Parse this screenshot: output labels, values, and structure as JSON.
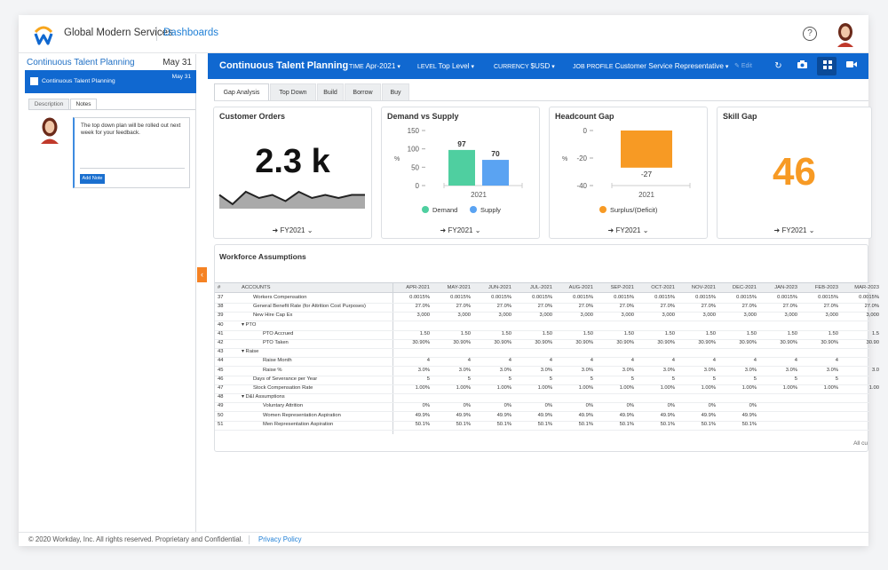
{
  "topbar": {
    "company": "Global Modern Services",
    "breadcrumb": "Dashboards",
    "help": "?"
  },
  "left_panel": {
    "title": "Continuous Talent Planning",
    "date": "May 31",
    "selected_item": {
      "label": "Continuous Talent Planning",
      "date": "May 31"
    },
    "tabs": [
      "Description",
      "Notes"
    ],
    "note": {
      "text": "The top down plan will be rolled out next week for your feedback.",
      "button": "Add Note"
    }
  },
  "header": {
    "title": "Continuous Talent Planning",
    "filters": [
      {
        "key": "TIME",
        "value": "Apr-2021"
      },
      {
        "key": "LEVEL",
        "value": "Top Level"
      },
      {
        "key": "CURRENCY",
        "value": "$USD"
      },
      {
        "key": "JOB PROFILE",
        "value": "Customer Service Representative"
      }
    ],
    "edit": "Edit"
  },
  "tabs": [
    "Gap Analysis",
    "Top Down",
    "Build",
    "Borrow",
    "Buy"
  ],
  "cards": {
    "customer_orders": {
      "title": "Customer Orders",
      "value": "2.3 k",
      "fy": "FY2021"
    },
    "demand_supply": {
      "title": "Demand vs Supply",
      "fy": "FY2021",
      "legend": [
        "Demand",
        "Supply"
      ]
    },
    "headcount_gap": {
      "title": "Headcount Gap",
      "fy": "FY2021",
      "legend": [
        "Surplus/(Deficit)"
      ]
    },
    "skill_gap": {
      "title": "Skill Gap",
      "value": "46",
      "fy": "FY2021"
    }
  },
  "chart_data": [
    {
      "type": "line",
      "title": "Customer Orders",
      "values": [
        5,
        2,
        6,
        4,
        5,
        3,
        6,
        4,
        5,
        4,
        5,
        5
      ],
      "color": "#222222"
    },
    {
      "type": "bar",
      "title": "Demand vs Supply",
      "categories": [
        "2021"
      ],
      "series": [
        {
          "name": "Demand",
          "values": [
            97
          ],
          "color": "#4fcfa0"
        },
        {
          "name": "Supply",
          "values": [
            70
          ],
          "color": "#5aa3f2"
        }
      ],
      "ylim": [
        0,
        150
      ],
      "yticks": [
        0,
        50,
        100,
        150
      ],
      "ylabel": "%"
    },
    {
      "type": "bar",
      "title": "Headcount Gap",
      "categories": [
        "2021"
      ],
      "series": [
        {
          "name": "Surplus/(Deficit)",
          "values": [
            -27
          ],
          "color": "#f79a24"
        }
      ],
      "ylim": [
        -40,
        0
      ],
      "yticks": [
        -40,
        -20,
        0
      ],
      "ylabel": "%"
    }
  ],
  "workforce": {
    "title": "Workforce Assumptions",
    "columns": [
      "#",
      "ACCOUNTS",
      "APR-2021",
      "MAY-2021",
      "JUN-2021",
      "JUL-2021",
      "AUG-2021",
      "SEP-2021",
      "OCT-2021",
      "NOV-2021",
      "DEC-2021",
      "JAN-2023",
      "FEB-2023",
      "MAR-2023"
    ],
    "rows": [
      {
        "n": "37",
        "label": "Workers Compensation",
        "level": 1,
        "vals": [
          "0.0015%",
          "0.0015%",
          "0.0015%",
          "0.0015%",
          "0.0015%",
          "0.0015%",
          "0.0015%",
          "0.0015%",
          "0.0015%",
          "0.0015%",
          "0.0015%",
          "0.0015%"
        ]
      },
      {
        "n": "38",
        "label": "General Benefit Rate (for Attrition Cost Purposes)",
        "level": 1,
        "vals": [
          "27.0%",
          "27.0%",
          "27.0%",
          "27.0%",
          "27.0%",
          "27.0%",
          "27.0%",
          "27.0%",
          "27.0%",
          "27.0%",
          "27.0%",
          "27.0%"
        ]
      },
      {
        "n": "39",
        "label": "New Hire Cap Ex",
        "level": 1,
        "vals": [
          "3,000",
          "3,000",
          "3,000",
          "3,000",
          "3,000",
          "3,000",
          "3,000",
          "3,000",
          "3,000",
          "3,000",
          "3,000",
          "3,000"
        ]
      },
      {
        "n": "40",
        "label": "PTO",
        "level": 0,
        "vals": []
      },
      {
        "n": "41",
        "label": "PTO Accrued",
        "level": 2,
        "vals": [
          "1.50",
          "1.50",
          "1.50",
          "1.50",
          "1.50",
          "1.50",
          "1.50",
          "1.50",
          "1.50",
          "1.50",
          "1.50",
          "1.5"
        ]
      },
      {
        "n": "42",
        "label": "PTO Taken",
        "level": 2,
        "vals": [
          "30.90%",
          "30.90%",
          "30.90%",
          "30.90%",
          "30.90%",
          "30.90%",
          "30.90%",
          "30.90%",
          "30.90%",
          "30.90%",
          "30.90%",
          "30.90"
        ]
      },
      {
        "n": "43",
        "label": "Raise",
        "level": 0,
        "vals": []
      },
      {
        "n": "44",
        "label": "Raise Month",
        "level": 2,
        "vals": [
          "4",
          "4",
          "4",
          "4",
          "4",
          "4",
          "4",
          "4",
          "4",
          "4",
          "4",
          ""
        ]
      },
      {
        "n": "45",
        "label": "Raise %",
        "level": 2,
        "vals": [
          "3.0%",
          "3.0%",
          "3.0%",
          "3.0%",
          "3.0%",
          "3.0%",
          "3.0%",
          "3.0%",
          "3.0%",
          "3.0%",
          "3.0%",
          "3.0"
        ]
      },
      {
        "n": "46",
        "label": "Days of Severance per Year",
        "level": 1,
        "vals": [
          "5",
          "5",
          "5",
          "5",
          "5",
          "5",
          "5",
          "5",
          "5",
          "5",
          "5",
          ""
        ]
      },
      {
        "n": "47",
        "label": "Stock Compensation Rate",
        "level": 1,
        "vals": [
          "1.00%",
          "1.00%",
          "1.00%",
          "1.00%",
          "1.00%",
          "1.00%",
          "1.00%",
          "1.00%",
          "1.00%",
          "1.00%",
          "1.00%",
          "1.00"
        ]
      },
      {
        "n": "48",
        "label": "D&I Assumptions",
        "level": 0,
        "vals": []
      },
      {
        "n": "49",
        "label": "Voluntary Attrition",
        "level": 2,
        "vals": [
          "0%",
          "0%",
          "0%",
          "0%",
          "0%",
          "0%",
          "0%",
          "0%",
          "0%",
          "",
          "",
          ""
        ]
      },
      {
        "n": "50",
        "label": "Women Representation Aspiration",
        "level": 2,
        "vals": [
          "49.9%",
          "49.9%",
          "49.9%",
          "49.9%",
          "49.9%",
          "49.9%",
          "49.9%",
          "49.9%",
          "49.9%",
          "",
          "",
          ""
        ]
      },
      {
        "n": "51",
        "label": "Men Representation Aspiration",
        "level": 2,
        "vals": [
          "50.1%",
          "50.1%",
          "50.1%",
          "50.1%",
          "50.1%",
          "50.1%",
          "50.1%",
          "50.1%",
          "50.1%",
          "",
          "",
          ""
        ]
      }
    ],
    "footer": "All cu"
  },
  "footer": {
    "copyright": "© 2020 Workday, Inc. All rights reserved. Proprietary and Confidential.",
    "privacy": "Privacy Policy"
  }
}
